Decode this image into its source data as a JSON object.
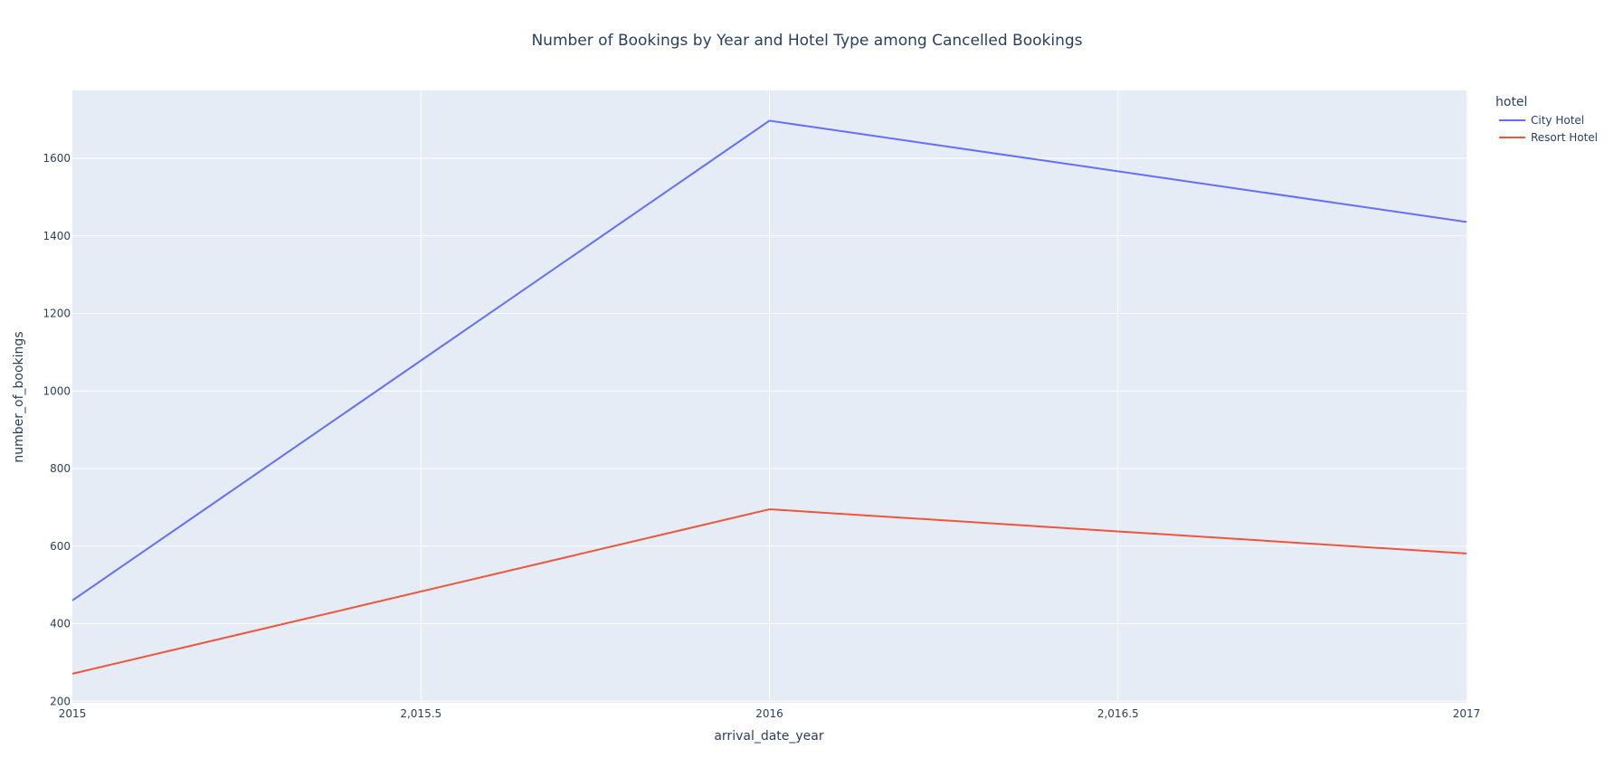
{
  "chart_data": {
    "type": "line",
    "title": "Number of Bookings by Year and Hotel Type among Cancelled Bookings",
    "xlabel": "arrival_date_year",
    "ylabel": "number_of_bookings",
    "xlim": [
      2015,
      2017
    ],
    "ylim": [
      196,
      1775
    ],
    "x_ticks": [
      2015,
      2015.5,
      2016,
      2016.5,
      2017
    ],
    "x_tick_labels": [
      "2015",
      "2,015.5",
      "2016",
      "2,016.5",
      "2017"
    ],
    "y_ticks": [
      200,
      400,
      600,
      800,
      1000,
      1200,
      1400,
      1600
    ],
    "y_tick_labels": [
      "200",
      "400",
      "600",
      "800",
      "1000",
      "1200",
      "1400",
      "1600"
    ],
    "grid": true,
    "legend_title": "hotel",
    "legend_position": "top-right",
    "plot_background": "#e5ecf6",
    "x": [
      2015,
      2016,
      2017
    ],
    "series": [
      {
        "name": "City Hotel",
        "color": "#636efa",
        "values": [
          460,
          1697,
          1436
        ]
      },
      {
        "name": "Resort Hotel",
        "color": "#ef553b",
        "values": [
          271,
          695,
          581
        ]
      }
    ]
  }
}
